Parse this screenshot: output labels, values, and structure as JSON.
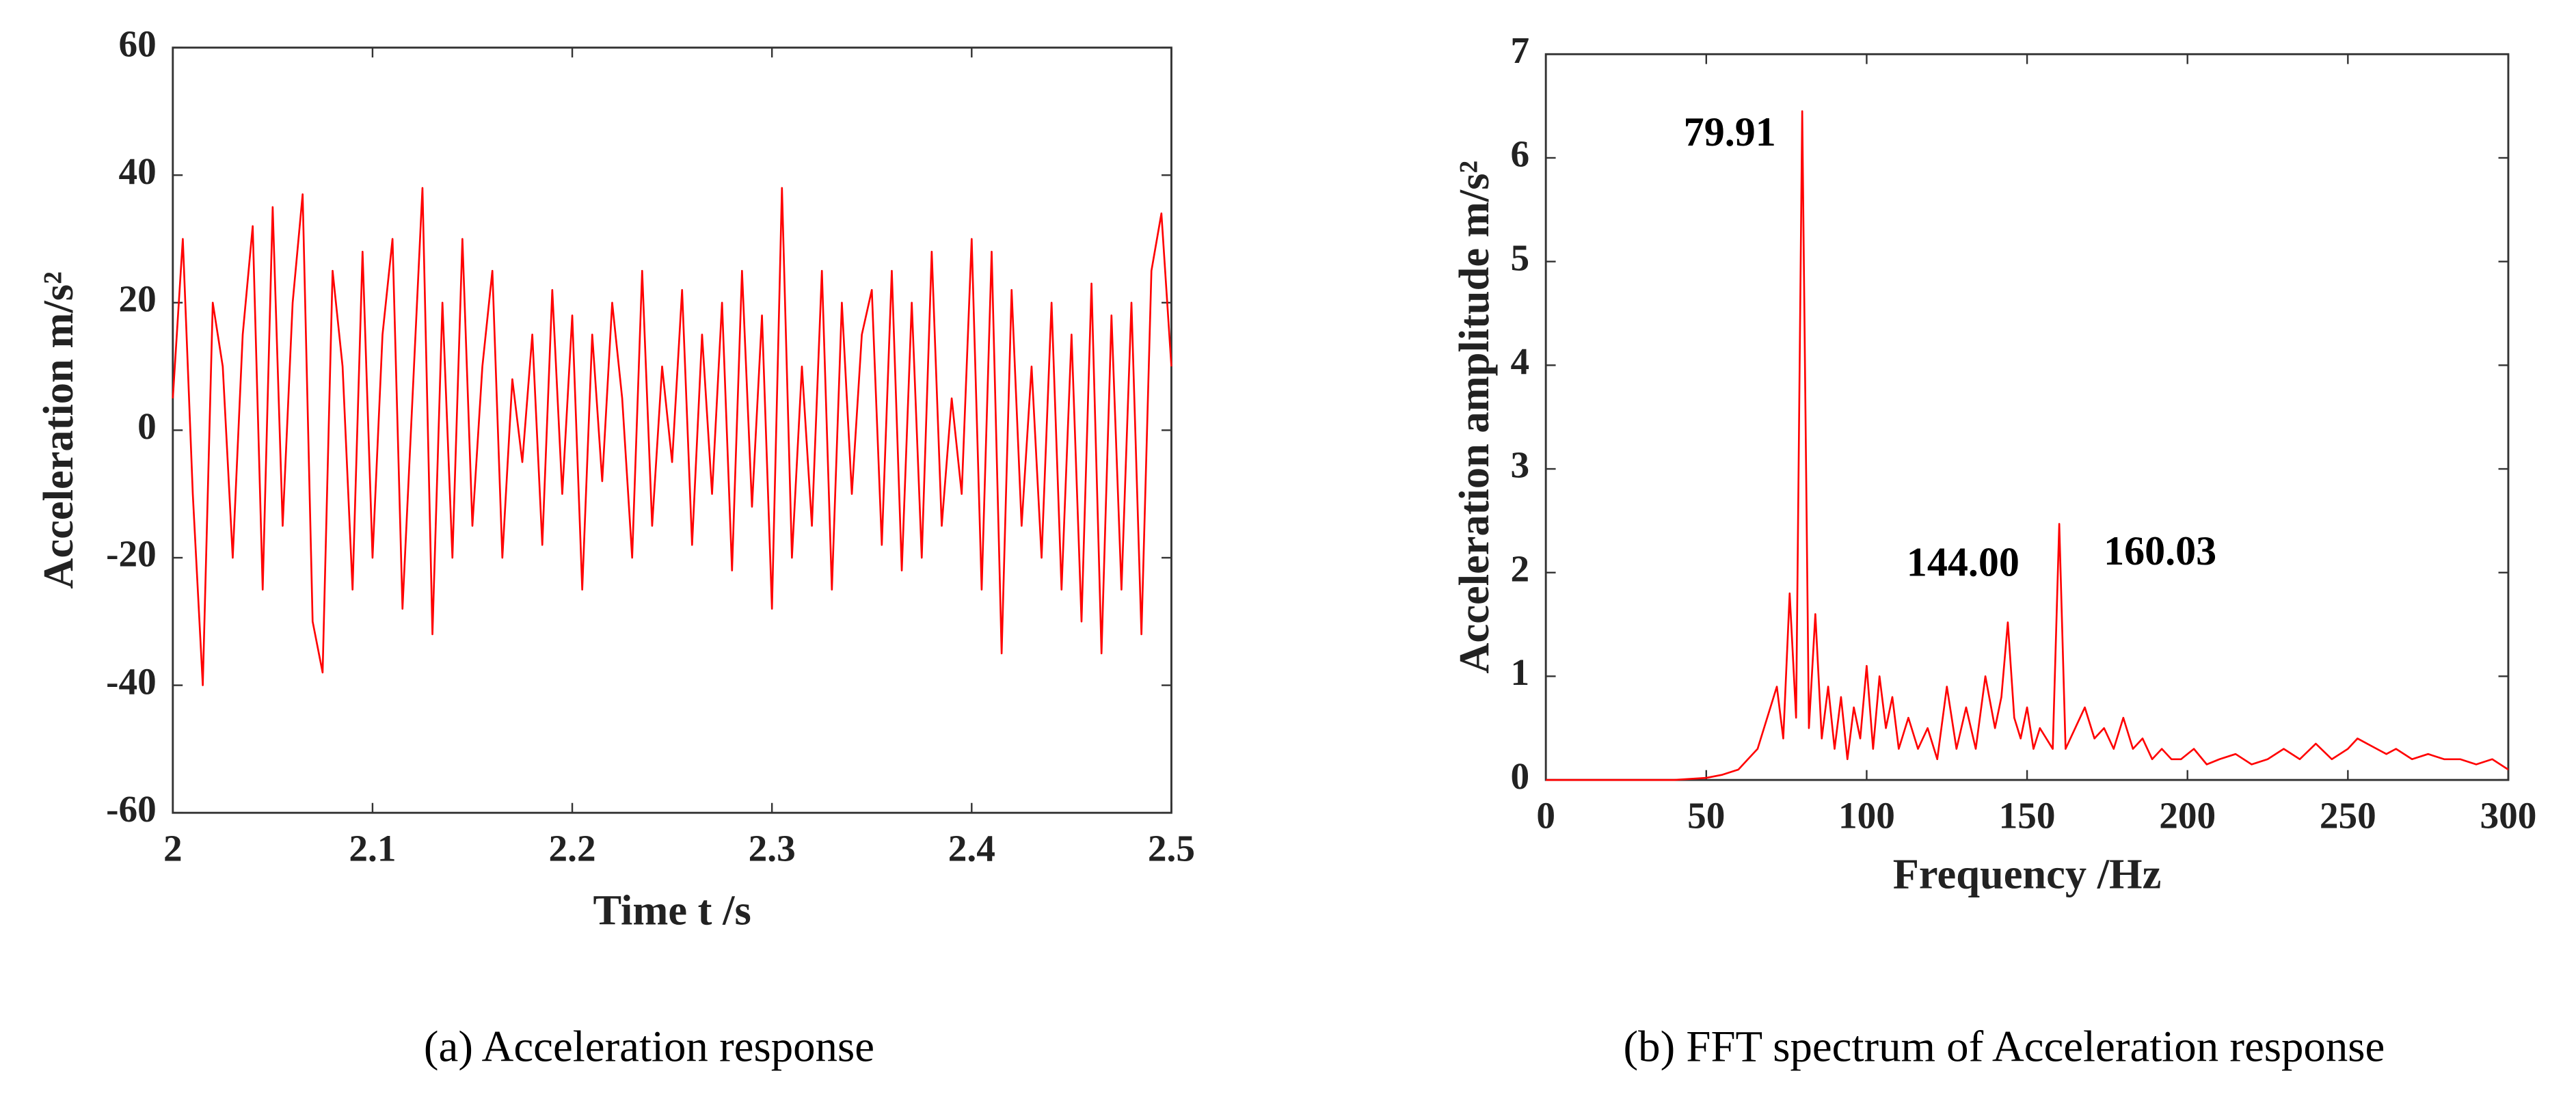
{
  "chart_data": [
    {
      "type": "line",
      "color": "#ff0000",
      "xlabel": "Time t /s",
      "ylabel": "Acceleration m/s²",
      "caption": "(a) Acceleration response",
      "xlim": [
        2,
        2.5
      ],
      "ylim": [
        -60,
        60
      ],
      "xticks": [
        2,
        2.1,
        2.2,
        2.3,
        2.4,
        2.5
      ],
      "yticks": [
        -60,
        -40,
        -20,
        0,
        20,
        40,
        60
      ],
      "x": [
        2,
        2.005,
        2.01,
        2.015,
        2.02,
        2.025,
        2.03,
        2.035,
        2.04,
        2.045,
        2.05,
        2.055,
        2.06,
        2.065,
        2.07,
        2.075,
        2.08,
        2.085,
        2.09,
        2.095,
        2.1,
        2.105,
        2.11,
        2.115,
        2.12,
        2.125,
        2.13,
        2.135,
        2.14,
        2.145,
        2.15,
        2.155,
        2.16,
        2.165,
        2.17,
        2.175,
        2.18,
        2.185,
        2.19,
        2.195,
        2.2,
        2.205,
        2.21,
        2.215,
        2.22,
        2.225,
        2.23,
        2.235,
        2.24,
        2.245,
        2.25,
        2.255,
        2.26,
        2.265,
        2.27,
        2.275,
        2.28,
        2.285,
        2.29,
        2.295,
        2.3,
        2.305,
        2.31,
        2.315,
        2.32,
        2.325,
        2.33,
        2.335,
        2.34,
        2.345,
        2.35,
        2.355,
        2.36,
        2.365,
        2.37,
        2.375,
        2.38,
        2.385,
        2.39,
        2.395,
        2.4,
        2.405,
        2.41,
        2.415,
        2.42,
        2.425,
        2.43,
        2.435,
        2.44,
        2.445,
        2.45,
        2.455,
        2.46,
        2.465,
        2.47,
        2.475,
        2.48,
        2.485,
        2.49,
        2.495,
        2.5
      ],
      "values": [
        5,
        30,
        -10,
        -40,
        20,
        10,
        -20,
        15,
        32,
        -25,
        35,
        -15,
        20,
        37,
        -30,
        -38,
        25,
        10,
        -25,
        28,
        -20,
        15,
        30,
        -28,
        5,
        38,
        -32,
        20,
        -20,
        30,
        -15,
        10,
        25,
        -20,
        8,
        -5,
        15,
        -18,
        22,
        -10,
        18,
        -25,
        15,
        -8,
        20,
        5,
        -20,
        25,
        -15,
        10,
        -5,
        22,
        -18,
        15,
        -10,
        20,
        -22,
        25,
        -12,
        18,
        -28,
        38,
        -20,
        10,
        -15,
        25,
        -25,
        20,
        -10,
        15,
        22,
        -18,
        25,
        -22,
        20,
        -20,
        28,
        -15,
        5,
        -10,
        30,
        -25,
        28,
        -35,
        22,
        -15,
        10,
        -20,
        20,
        -25,
        15,
        -30,
        23,
        -35,
        18,
        -25,
        20,
        -32,
        25,
        34,
        10
      ]
    },
    {
      "type": "line",
      "color": "#ff0000",
      "xlabel": "Frequency /Hz",
      "ylabel": "Acceleration amplitude m/s²",
      "caption": "(b) FFT spectrum of Acceleration response",
      "xlim": [
        0,
        300
      ],
      "ylim": [
        0,
        7
      ],
      "xticks": [
        0,
        50,
        100,
        150,
        200,
        250,
        300
      ],
      "yticks": [
        0,
        1,
        2,
        3,
        4,
        5,
        6,
        7
      ],
      "annotations": [
        "79.91",
        "144.00",
        "160.03"
      ],
      "x": [
        0,
        10,
        20,
        30,
        40,
        50,
        55,
        60,
        63,
        66,
        69,
        72,
        74,
        76,
        78,
        79.91,
        82,
        84,
        86,
        88,
        90,
        92,
        94,
        96,
        98,
        100,
        102,
        104,
        106,
        108,
        110,
        113,
        116,
        119,
        122,
        125,
        128,
        131,
        134,
        137,
        140,
        142,
        144,
        146,
        148,
        150,
        152,
        154,
        156,
        158,
        160.03,
        162,
        165,
        168,
        171,
        174,
        177,
        180,
        183,
        186,
        189,
        192,
        195,
        198,
        202,
        206,
        210,
        215,
        220,
        225,
        230,
        235,
        240,
        245,
        250,
        253,
        256,
        259,
        262,
        265,
        270,
        275,
        280,
        285,
        290,
        295,
        300
      ],
      "values": [
        0,
        0,
        0,
        0,
        0,
        0.02,
        0.05,
        0.1,
        0.2,
        0.3,
        0.6,
        0.9,
        0.4,
        1.8,
        0.6,
        6.45,
        0.5,
        1.6,
        0.4,
        0.9,
        0.3,
        0.8,
        0.2,
        0.7,
        0.4,
        1.1,
        0.3,
        1.0,
        0.5,
        0.8,
        0.3,
        0.6,
        0.3,
        0.5,
        0.2,
        0.9,
        0.3,
        0.7,
        0.3,
        1.0,
        0.5,
        0.8,
        1.52,
        0.6,
        0.4,
        0.7,
        0.3,
        0.5,
        0.4,
        0.3,
        2.47,
        0.3,
        0.5,
        0.7,
        0.4,
        0.5,
        0.3,
        0.6,
        0.3,
        0.4,
        0.2,
        0.3,
        0.2,
        0.2,
        0.3,
        0.15,
        0.2,
        0.25,
        0.15,
        0.2,
        0.3,
        0.2,
        0.35,
        0.2,
        0.3,
        0.4,
        0.35,
        0.3,
        0.25,
        0.3,
        0.2,
        0.25,
        0.2,
        0.2,
        0.15,
        0.2,
        0.1
      ]
    }
  ]
}
